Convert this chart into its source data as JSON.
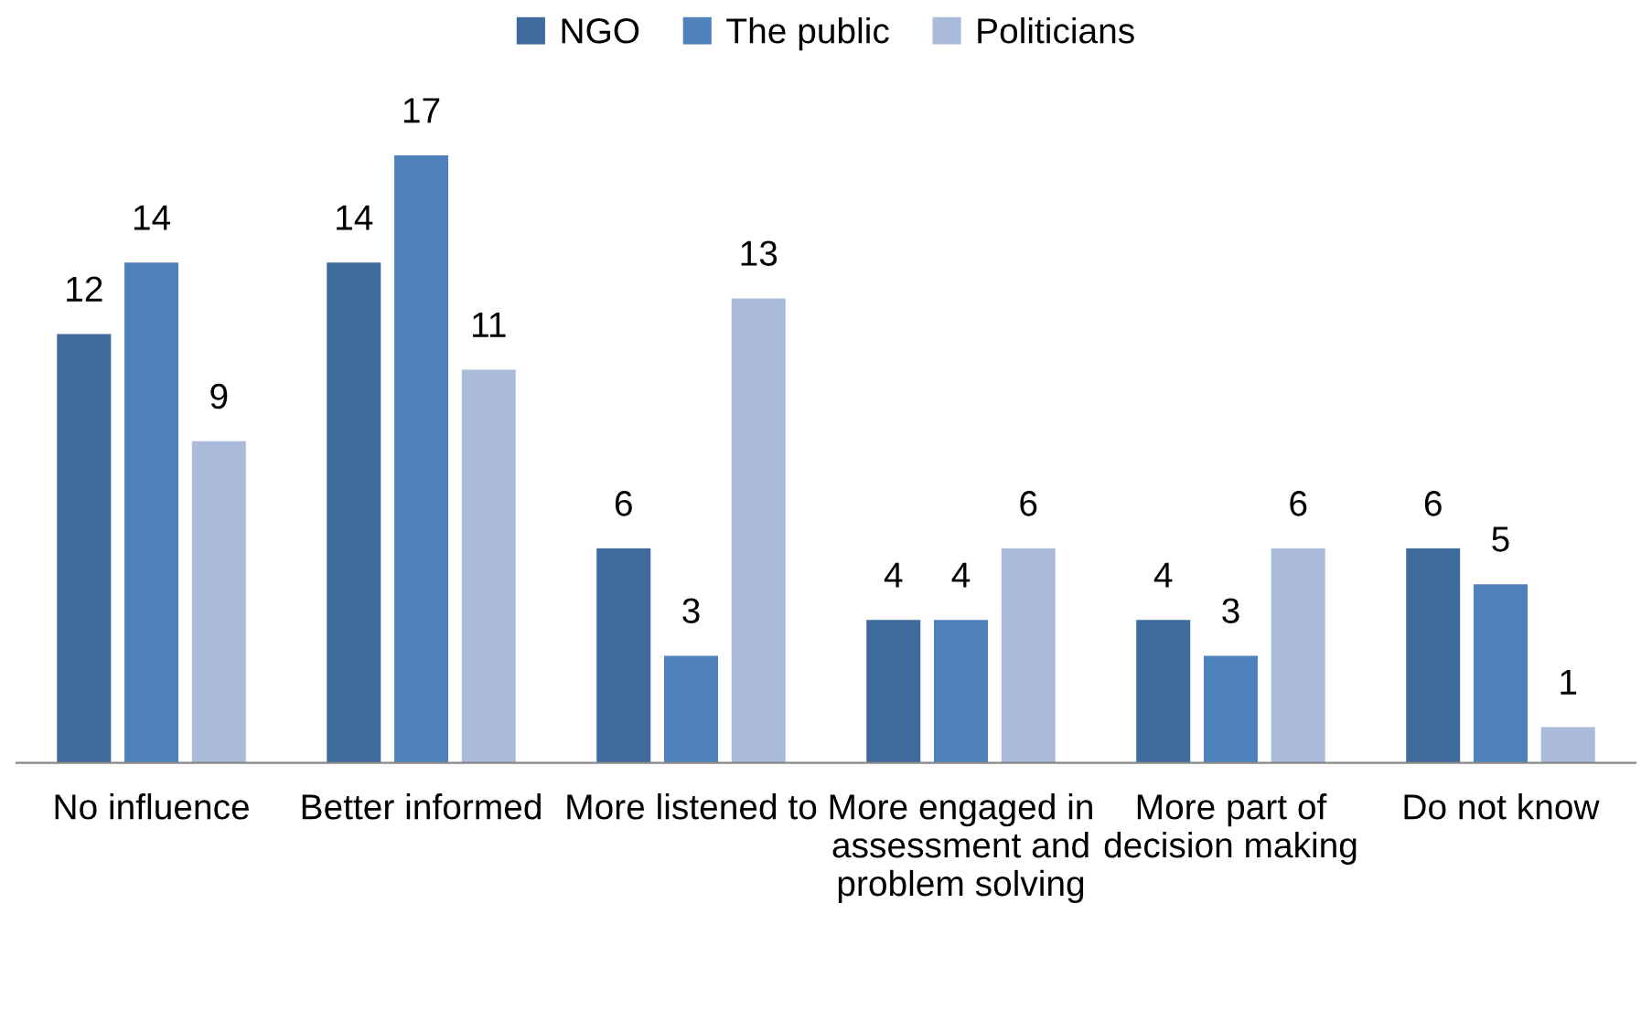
{
  "chart_data": {
    "type": "bar",
    "categories": [
      "No influence",
      "Better informed",
      "More listened to",
      "More engaged in assessment and problem solving",
      "More part of decision making",
      "Do not know"
    ],
    "series": [
      {
        "name": "NGO",
        "color": "#3f6a9c",
        "values": [
          12,
          14,
          6,
          4,
          4,
          6
        ]
      },
      {
        "name": "The public",
        "color": "#4f81bd",
        "values": [
          14,
          17,
          3,
          4,
          3,
          5
        ]
      },
      {
        "name": "Politicians",
        "color": "#aabbd9",
        "values": [
          9,
          11,
          13,
          6,
          6,
          1
        ]
      }
    ],
    "data_labels": true,
    "grid": false,
    "legend": "top"
  }
}
